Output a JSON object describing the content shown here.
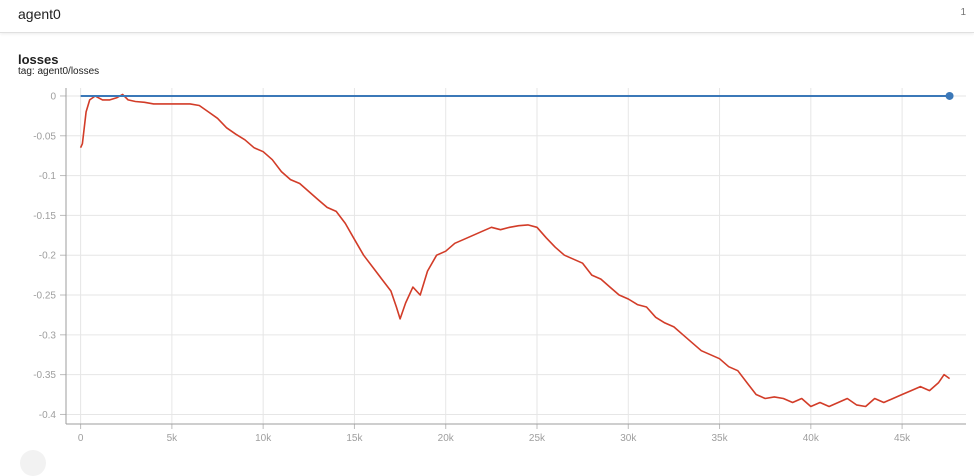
{
  "header": {
    "run_name": "agent0",
    "count": "1"
  },
  "card": {
    "title": "losses",
    "tag": "tag: agent0/losses"
  },
  "colors": {
    "series_blue": "#3b78b8",
    "series_red": "#d23c28",
    "grid": "#e6e6e6"
  },
  "chart_data": {
    "type": "line",
    "title": "losses",
    "xlabel": "",
    "ylabel": "",
    "xlim": [
      -800,
      48500
    ],
    "ylim": [
      -0.412,
      0.01
    ],
    "x_ticks": [
      0,
      5000,
      10000,
      15000,
      20000,
      25000,
      30000,
      35000,
      40000,
      45000
    ],
    "x_tick_labels": [
      "0",
      "5k",
      "10k",
      "15k",
      "20k",
      "25k",
      "30k",
      "35k",
      "40k",
      "45k"
    ],
    "y_ticks": [
      0,
      -0.05,
      -0.1,
      -0.15,
      -0.2,
      -0.25,
      -0.3,
      -0.35,
      -0.4
    ],
    "y_tick_labels": [
      "0",
      "-0.05",
      "-0.1",
      "-0.15",
      "-0.2",
      "-0.25",
      "-0.3",
      "-0.35",
      "-0.4"
    ],
    "grid": true,
    "series": [
      {
        "color": "#3b78b8",
        "x": [
          0,
          5000,
          10000,
          15000,
          20000,
          25000,
          30000,
          35000,
          40000,
          45000,
          47600
        ],
        "y": [
          0,
          0,
          0,
          0,
          0,
          0,
          0,
          0,
          0,
          0,
          0
        ],
        "end_marker": true
      },
      {
        "color": "#d23c28",
        "x": [
          0,
          100,
          300,
          500,
          800,
          1200,
          1600,
          2000,
          2300,
          2600,
          3000,
          3500,
          4000,
          4500,
          5000,
          5500,
          6000,
          6500,
          7000,
          7500,
          8000,
          8500,
          9000,
          9500,
          10000,
          10500,
          11000,
          11500,
          12000,
          12500,
          13000,
          13500,
          14000,
          14500,
          15000,
          15500,
          16000,
          16500,
          17000,
          17300,
          17500,
          17800,
          18200,
          18600,
          19000,
          19500,
          20000,
          20500,
          21000,
          21500,
          22000,
          22500,
          23000,
          23500,
          24000,
          24500,
          25000,
          25500,
          26000,
          26500,
          27000,
          27500,
          28000,
          28500,
          29000,
          29500,
          30000,
          30500,
          31000,
          31500,
          32000,
          32500,
          33000,
          33500,
          34000,
          34500,
          35000,
          35500,
          36000,
          36500,
          37000,
          37500,
          38000,
          38500,
          39000,
          39500,
          40000,
          40500,
          41000,
          41500,
          42000,
          42500,
          43000,
          43500,
          44000,
          44500,
          45000,
          45500,
          46000,
          46500,
          47000,
          47300,
          47600
        ],
        "y": [
          -0.065,
          -0.06,
          -0.02,
          -0.005,
          0,
          -0.005,
          -0.005,
          -0.002,
          0.002,
          -0.005,
          -0.007,
          -0.008,
          -0.01,
          -0.01,
          -0.01,
          -0.01,
          -0.01,
          -0.012,
          -0.02,
          -0.028,
          -0.04,
          -0.048,
          -0.055,
          -0.065,
          -0.07,
          -0.08,
          -0.095,
          -0.105,
          -0.11,
          -0.12,
          -0.13,
          -0.14,
          -0.145,
          -0.16,
          -0.18,
          -0.2,
          -0.215,
          -0.23,
          -0.245,
          -0.265,
          -0.28,
          -0.26,
          -0.24,
          -0.25,
          -0.22,
          -0.2,
          -0.195,
          -0.185,
          -0.18,
          -0.175,
          -0.17,
          -0.165,
          -0.168,
          -0.165,
          -0.163,
          -0.162,
          -0.165,
          -0.178,
          -0.19,
          -0.2,
          -0.205,
          -0.21,
          -0.225,
          -0.23,
          -0.24,
          -0.25,
          -0.255,
          -0.262,
          -0.265,
          -0.278,
          -0.285,
          -0.29,
          -0.3,
          -0.31,
          -0.32,
          -0.325,
          -0.33,
          -0.34,
          -0.345,
          -0.36,
          -0.375,
          -0.38,
          -0.378,
          -0.38,
          -0.385,
          -0.38,
          -0.39,
          -0.385,
          -0.39,
          -0.385,
          -0.38,
          -0.388,
          -0.39,
          -0.38,
          -0.385,
          -0.38,
          -0.375,
          -0.37,
          -0.365,
          -0.37,
          -0.36,
          -0.35,
          -0.355
        ]
      }
    ]
  }
}
